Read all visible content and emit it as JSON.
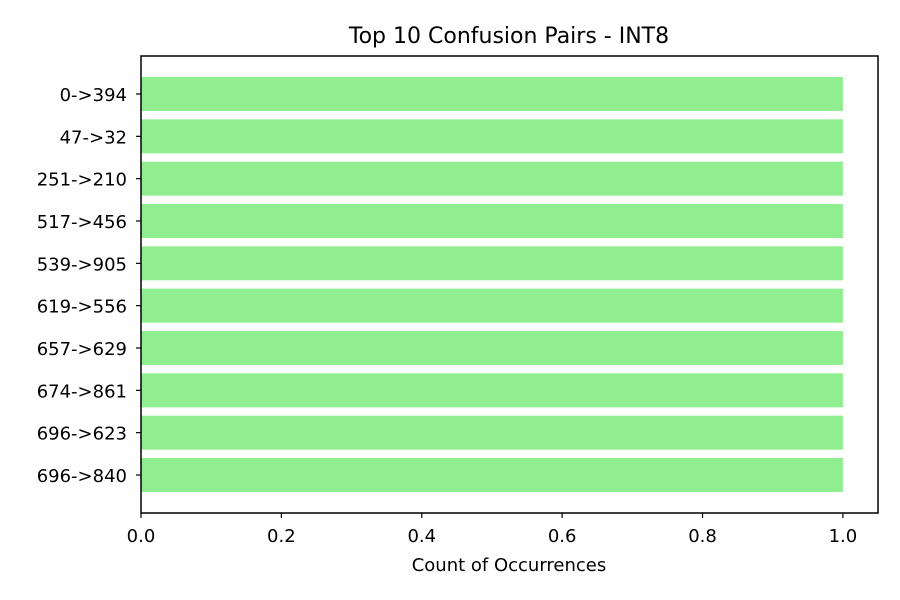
{
  "chart_data": {
    "type": "bar",
    "orientation": "horizontal",
    "title": "Top 10 Confusion Pairs - INT8",
    "xlabel": "Count of Occurrences",
    "ylabel": "",
    "categories": [
      "0->394",
      "47->32",
      "251->210",
      "517->456",
      "539->905",
      "619->556",
      "657->629",
      "674->861",
      "696->623",
      "696->840"
    ],
    "values": [
      1,
      1,
      1,
      1,
      1,
      1,
      1,
      1,
      1,
      1
    ],
    "xlim": [
      0,
      1.05
    ],
    "xticks": [
      "0.0",
      "0.2",
      "0.4",
      "0.6",
      "0.8",
      "1.0"
    ],
    "xtick_values": [
      0,
      0.2,
      0.4,
      0.6,
      0.8,
      1.0
    ],
    "bar_color": "#90ee90",
    "grid": false,
    "legend": "none"
  }
}
